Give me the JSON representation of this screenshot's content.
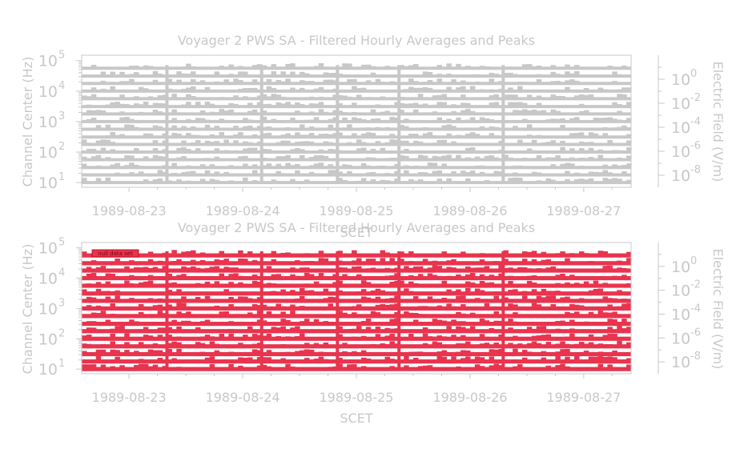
{
  "colors": {
    "text": "#c8c8c8",
    "axis": "#c8c8c8",
    "upper_bars": "#c8c8c8",
    "lower_bars": "#e8344e",
    "badge": "#e8344e"
  },
  "chart_data": [
    {
      "type": "bar",
      "title": "Voyager 2 PWS SA - Filtered Hourly Averages and Peaks",
      "xlabel": "SCET",
      "ylabel": "Channel Center (Hz)",
      "y2label": "Electric Field (V/m)",
      "x_ticks": [
        "1989-08-23",
        "1989-08-24",
        "1989-08-25",
        "1989-08-26",
        "1989-08-27"
      ],
      "y_scale": "log",
      "y_ticks": [
        {
          "base": "10",
          "exp": "1"
        },
        {
          "base": "10",
          "exp": "2"
        },
        {
          "base": "10",
          "exp": "3"
        },
        {
          "base": "10",
          "exp": "4"
        },
        {
          "base": "10",
          "exp": "5"
        }
      ],
      "y2_scale": "log",
      "y2_ticks": [
        {
          "base": "10",
          "exp": "0"
        },
        {
          "base": "10",
          "exp": "-2"
        },
        {
          "base": "10",
          "exp": "-4"
        },
        {
          "base": "10",
          "exp": "-6"
        },
        {
          "base": "10",
          "exp": "-8"
        }
      ],
      "xlim": [
        "1989-08-22 14:00",
        "1989-08-27 10:00"
      ],
      "ylim": [
        7,
        150000
      ],
      "y2lim": [
        "1e-9",
        "1e2"
      ],
      "channels_hz": [
        10,
        17.8,
        31.1,
        56.2,
        100,
        178,
        311,
        562,
        1000,
        1780,
        3110,
        5620,
        10000,
        17800,
        31100,
        56200
      ],
      "series_color": "gray",
      "badge": "",
      "grid": false
    },
    {
      "type": "bar",
      "title": "Voyager 2 PWS SA - Filtered Hourly Averages and Peaks",
      "xlabel": "SCET",
      "ylabel": "Channel Center (Hz)",
      "y2label": "Electric Field (V/m)",
      "x_ticks": [
        "1989-08-23",
        "1989-08-24",
        "1989-08-25",
        "1989-08-26",
        "1989-08-27"
      ],
      "y_scale": "log",
      "y_ticks": [
        {
          "base": "10",
          "exp": "1"
        },
        {
          "base": "10",
          "exp": "2"
        },
        {
          "base": "10",
          "exp": "3"
        },
        {
          "base": "10",
          "exp": "4"
        },
        {
          "base": "10",
          "exp": "5"
        }
      ],
      "y2_scale": "log",
      "y2_ticks": [
        {
          "base": "10",
          "exp": "0"
        },
        {
          "base": "10",
          "exp": "-2"
        },
        {
          "base": "10",
          "exp": "-4"
        },
        {
          "base": "10",
          "exp": "-6"
        },
        {
          "base": "10",
          "exp": "-8"
        }
      ],
      "xlim": [
        "1989-08-22 14:00",
        "1989-08-27 10:00"
      ],
      "ylim": [
        7,
        150000
      ],
      "y2lim": [
        "1e-9",
        "1e2"
      ],
      "channels_hz": [
        10,
        17.8,
        31.1,
        56.2,
        100,
        178,
        311,
        562,
        1000,
        1780,
        3110,
        5620,
        10000,
        17800,
        31100,
        56200
      ],
      "series_color": "red",
      "badge": "null data set",
      "grid": false
    }
  ]
}
